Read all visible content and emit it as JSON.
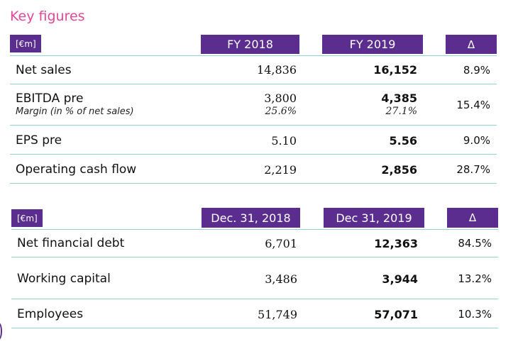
{
  "title": "Key figures",
  "table1": {
    "unit": "[€m]",
    "col1": "FY 2018",
    "col2": "FY 2019",
    "delta": "Δ",
    "rows": [
      {
        "label": "Net sales",
        "v1": "14,836",
        "v2": "16,152",
        "delta": "8.9%"
      },
      {
        "label": "EBITDA pre",
        "sublabel": "Margin (in % of net sales)",
        "v1": "3,800",
        "v1_sub": "25.6%",
        "v2": "4,385",
        "v2_sub": "27.1%",
        "delta": "15.4%"
      },
      {
        "label": "EPS pre",
        "v1": "5.10",
        "v2": "5.56",
        "delta": "9.0%"
      },
      {
        "label": "Operating cash flow",
        "v1": "2,219",
        "v2": "2,856",
        "delta": "28.7%"
      }
    ]
  },
  "table2": {
    "unit": "[€m]",
    "col1": "Dec. 31, 2018",
    "col2": "Dec 31, 2019",
    "delta": "Δ",
    "rows": [
      {
        "label": "Net financial debt",
        "v1": "6,701",
        "v2": "12,363",
        "delta": "84.5%"
      },
      {
        "label": "Working capital",
        "v1": "3,486",
        "v2": "3,944",
        "delta": "13.2%"
      },
      {
        "label": "Employees",
        "v1": "51,749",
        "v2": "57,071",
        "delta": "10.3%"
      }
    ]
  },
  "colors": {
    "header": "#5b2d8e",
    "title": "#e0489a",
    "rule": "#8fd3d7"
  }
}
